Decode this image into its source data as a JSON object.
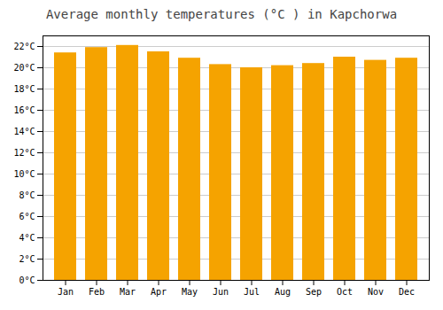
{
  "chart_data": {
    "type": "bar",
    "title": "Average monthly temperatures (°C ) in Kapchorwa",
    "categories": [
      "Jan",
      "Feb",
      "Mar",
      "Apr",
      "May",
      "Jun",
      "Jul",
      "Aug",
      "Sep",
      "Oct",
      "Nov",
      "Dec"
    ],
    "values": [
      21.4,
      21.9,
      22.1,
      21.5,
      20.9,
      20.3,
      20.0,
      20.2,
      20.4,
      21.0,
      20.7,
      20.9
    ],
    "color": "#F5A300",
    "ylim": [
      0,
      23
    ],
    "yticks": [
      {
        "value": 0,
        "label": "0°C"
      },
      {
        "value": 2,
        "label": "2°C"
      },
      {
        "value": 4,
        "label": "4°C"
      },
      {
        "value": 6,
        "label": "6°C"
      },
      {
        "value": 8,
        "label": "8°C"
      },
      {
        "value": 10,
        "label": "10°C"
      },
      {
        "value": 12,
        "label": "12°C"
      },
      {
        "value": 14,
        "label": "14°C"
      },
      {
        "value": 16,
        "label": "16°C"
      },
      {
        "value": 18,
        "label": "18°C"
      },
      {
        "value": 20,
        "label": "20°C"
      },
      {
        "value": 22,
        "label": "22°C"
      }
    ],
    "grid": true
  }
}
